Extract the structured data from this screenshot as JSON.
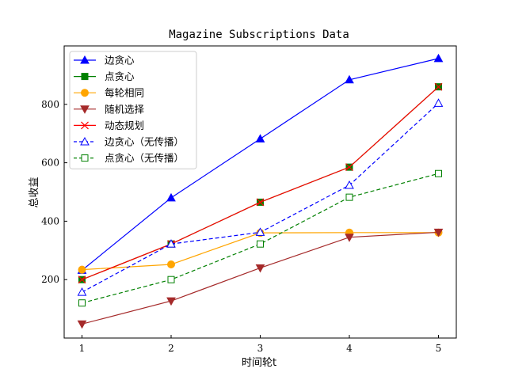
{
  "chart_data": {
    "type": "line",
    "title": "Magazine Subscriptions Data",
    "xlabel": "时间轮t",
    "ylabel": "总收益",
    "x": [
      1,
      2,
      3,
      4,
      5
    ],
    "xticks": [
      "1",
      "2",
      "3",
      "4",
      "5"
    ],
    "yticks": [
      "200",
      "400",
      "600",
      "800"
    ],
    "xlim": [
      0.8,
      5.2
    ],
    "ylim": [
      0,
      1000
    ],
    "grid": false,
    "legend_position": "top-left",
    "series": [
      {
        "name": "边贪心",
        "values": [
          232,
          480,
          682,
          884,
          957
        ],
        "color": "#0000ff",
        "marker": "triangle-up",
        "fill": true,
        "dashed": false
      },
      {
        "name": "点贪心",
        "values": [
          200,
          322,
          465,
          585,
          860
        ],
        "color": "#008000",
        "marker": "square",
        "fill": true,
        "dashed": false
      },
      {
        "name": "每轮相同",
        "values": [
          234,
          252,
          360,
          361,
          361
        ],
        "color": "#ffa500",
        "marker": "circle",
        "fill": true,
        "dashed": false
      },
      {
        "name": "随机选择",
        "values": [
          48,
          127,
          240,
          345,
          362
        ],
        "color": "#a52a2a",
        "marker": "triangle-down",
        "fill": true,
        "dashed": false
      },
      {
        "name": "动态规划",
        "values": [
          200,
          322,
          465,
          585,
          860
        ],
        "color": "#ff0000",
        "marker": "x",
        "fill": false,
        "dashed": false
      },
      {
        "name": "边贪心（无传播）",
        "values": [
          157,
          322,
          362,
          523,
          804
        ],
        "color": "#0000ff",
        "marker": "triangle-up",
        "fill": false,
        "dashed": true
      },
      {
        "name": "点贪心（无传播）",
        "values": [
          120,
          200,
          322,
          482,
          563
        ],
        "color": "#008000",
        "marker": "square",
        "fill": false,
        "dashed": true
      }
    ]
  }
}
